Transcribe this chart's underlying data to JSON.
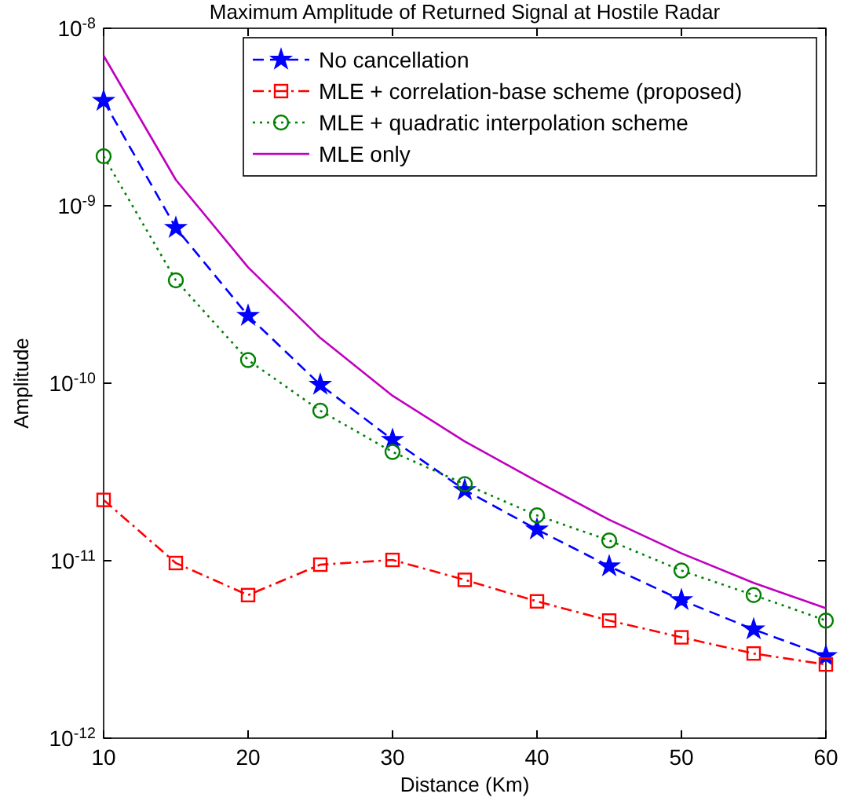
{
  "chart_data": {
    "type": "line",
    "title": "Maximum Amplitude of Returned Signal at Hostile Radar",
    "xlabel": "Distance (Km)",
    "ylabel": "Amplitude",
    "log": "y",
    "grid": false,
    "legend": "top right",
    "x": [
      10,
      15,
      20,
      25,
      30,
      35,
      40,
      45,
      50,
      55,
      60
    ],
    "xlim": [
      10,
      60
    ],
    "xticks": [
      10,
      20,
      30,
      40,
      50,
      60
    ],
    "ylim": [
      1e-12,
      1e-08
    ],
    "yticks": [
      {
        "value": 1e-12,
        "label": "10$^{-12}$"
      },
      {
        "value": 1e-11,
        "label": "10$^{-11}$"
      },
      {
        "value": 1e-10,
        "label": "10$^{-10}$"
      },
      {
        "value": 1e-09,
        "label": "10$^{-9}$"
      },
      {
        "value": 1e-08,
        "label": "10$^{-8}$"
      }
    ],
    "series": [
      {
        "name": "No cancellation",
        "color": "#0000ff",
        "marker": "star",
        "line_style": "dashed",
        "values": [
          3.9e-09,
          7.5e-10,
          2.4e-10,
          9.8e-11,
          4.8e-11,
          2.5e-11,
          1.5e-11,
          9.3e-12,
          6e-12,
          4.1e-12,
          2.9e-12
        ]
      },
      {
        "name": "MLE + correlation-base scheme (proposed)",
        "color": "#ff0000",
        "marker": "square",
        "line_style": "dashdot",
        "values": [
          2.2e-11,
          9.7e-12,
          6.4e-12,
          9.5e-12,
          1.01e-11,
          7.8e-12,
          5.9e-12,
          4.6e-12,
          3.7e-12,
          3e-12,
          2.6e-12
        ]
      },
      {
        "name": "MLE + quadratic interpolation scheme",
        "color": "#008000",
        "marker": "circle",
        "line_style": "dotted",
        "values": [
          1.9e-09,
          3.8e-10,
          1.35e-10,
          7e-11,
          4.1e-11,
          2.7e-11,
          1.8e-11,
          1.3e-11,
          8.8e-12,
          6.4e-12,
          4.6e-12
        ]
      },
      {
        "name": "MLE only",
        "color": "#bf00bf",
        "marker": "none",
        "line_style": "solid",
        "values": [
          7e-09,
          1.4e-09,
          4.5e-10,
          1.8e-10,
          8.5e-11,
          4.7e-11,
          2.8e-11,
          1.7e-11,
          1.1e-11,
          7.5e-12,
          5.4e-12
        ]
      }
    ]
  }
}
